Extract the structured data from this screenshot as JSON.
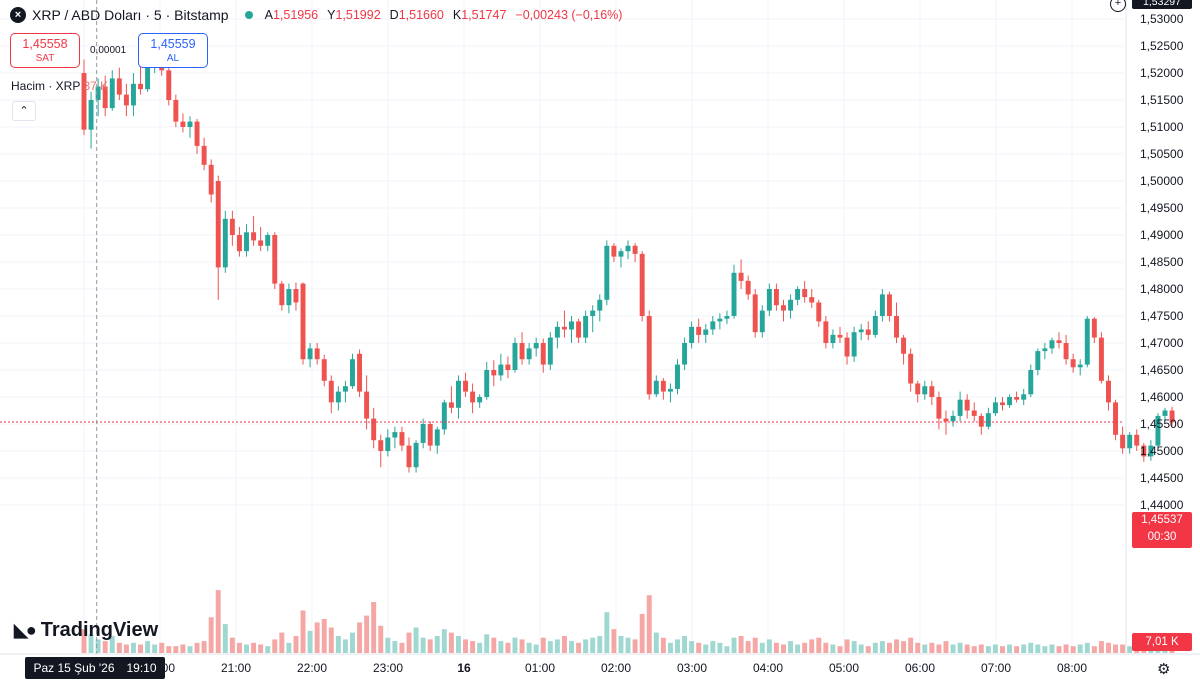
{
  "legend": {
    "symbol_icon": "x-close-icon",
    "symbol_text": "XRP / ABD Doları · 5 · Bitstamp",
    "ohlc": [
      {
        "key": "A",
        "value": "1,51956"
      },
      {
        "key": "Y",
        "value": "1,51992"
      },
      {
        "key": "D",
        "value": "1,51660"
      },
      {
        "key": "K",
        "value": "1,51747"
      }
    ],
    "change": "−0,00243 (−0,16%)"
  },
  "sell_box": {
    "price": "1,45558",
    "label": "SAT"
  },
  "buy_box": {
    "price": "1,45559",
    "label": "AL"
  },
  "spread": "0,00001",
  "volume_legend": {
    "label": "Hacim · XRP",
    "value": "37 K"
  },
  "collapse_icon": "chevron-up-icon",
  "brand": "TradingView",
  "crosshair_label": {
    "day": "Paz 15 Şub '26",
    "time": "19:10"
  },
  "current_price_tag": {
    "price": "1,45537",
    "countdown": "00:30"
  },
  "volume_tag": "7,01 K",
  "top_price_tag": "1,53297",
  "colors": {
    "up": "#26a69a",
    "down": "#ef5350",
    "vol_up": "#9fd8d1",
    "vol_down": "#f4a7a5",
    "price_line": "#f23645"
  },
  "chart_data": {
    "type": "candlestick",
    "timeframe": "5",
    "y_axis_ticks": [
      "1,53297",
      "1,53000",
      "1,52500",
      "1,52000",
      "1,51500",
      "1,51000",
      "1,50500",
      "1,50000",
      "1,49500",
      "1,49000",
      "1,48500",
      "1,48000",
      "1,47500",
      "1,47000",
      "1,46500",
      "1,46000",
      "1,45500",
      "1,45000",
      "1,44500",
      "1,44000"
    ],
    "y_range": [
      1.4375,
      1.533
    ],
    "x_axis_ticks": [
      ":00",
      "20:00",
      "21:00",
      "22:00",
      "23:00",
      "16",
      "01:00",
      "02:00",
      "03:00",
      "04:00",
      "05:00",
      "06:00",
      "07:00",
      "08:00"
    ],
    "x_tick_minutes": [
      1140,
      1200,
      1260,
      1320,
      1380,
      1440,
      1500,
      1560,
      1620,
      1680,
      1740,
      1800,
      1860,
      1920
    ],
    "x_range_minutes": [
      1140,
      1999
    ],
    "last_price": 1.45537,
    "crosshair_minutes": 1150,
    "candles": [
      [
        1.52,
        1.5225,
        1.5085,
        1.5095,
        0.14
      ],
      [
        1.5095,
        1.5165,
        1.506,
        1.515,
        0.11
      ],
      [
        1.515,
        1.519,
        1.512,
        1.5175,
        0.08
      ],
      [
        1.5175,
        1.5195,
        1.512,
        1.5135,
        0.07
      ],
      [
        1.5135,
        1.5205,
        1.513,
        1.519,
        0.1
      ],
      [
        1.519,
        1.521,
        1.515,
        1.516,
        0.06
      ],
      [
        1.516,
        1.518,
        1.512,
        1.514,
        0.05
      ],
      [
        1.514,
        1.52,
        1.512,
        1.518,
        0.06
      ],
      [
        1.518,
        1.5215,
        1.516,
        1.517,
        0.05
      ],
      [
        1.517,
        1.5225,
        1.5165,
        1.5215,
        0.07
      ],
      [
        1.5215,
        1.5235,
        1.52,
        1.5225,
        0.05
      ],
      [
        1.5225,
        1.5232,
        1.5195,
        1.5205,
        0.06
      ],
      [
        1.5205,
        1.521,
        1.514,
        1.515,
        0.04
      ],
      [
        1.515,
        1.516,
        1.51,
        1.511,
        0.04
      ],
      [
        1.511,
        1.5125,
        1.509,
        1.51,
        0.05
      ],
      [
        1.51,
        1.512,
        1.508,
        1.511,
        0.04
      ],
      [
        1.511,
        1.5115,
        1.505,
        1.5065,
        0.06
      ],
      [
        1.5065,
        1.508,
        1.502,
        1.503,
        0.07
      ],
      [
        1.503,
        1.504,
        1.496,
        1.4975,
        0.21
      ],
      [
        1.5,
        1.501,
        1.478,
        1.484,
        0.37
      ],
      [
        1.484,
        1.4945,
        1.483,
        1.493,
        0.17
      ],
      [
        1.493,
        1.4945,
        1.488,
        1.49,
        0.09
      ],
      [
        1.49,
        1.4915,
        1.486,
        1.487,
        0.06
      ],
      [
        1.487,
        1.492,
        1.486,
        1.4905,
        0.05
      ],
      [
        1.4905,
        1.4935,
        1.488,
        1.489,
        0.06
      ],
      [
        1.489,
        1.4915,
        1.487,
        1.488,
        0.05
      ],
      [
        1.488,
        1.4905,
        1.487,
        1.49,
        0.04
      ],
      [
        1.49,
        1.4905,
        1.48,
        1.481,
        0.08
      ],
      [
        1.481,
        1.4815,
        1.476,
        1.477,
        0.12
      ],
      [
        1.477,
        1.481,
        1.4755,
        1.48,
        0.06
      ],
      [
        1.48,
        1.4812,
        1.476,
        1.4775,
        0.1
      ],
      [
        1.481,
        1.4812,
        1.466,
        1.467,
        0.25
      ],
      [
        1.467,
        1.47,
        1.4655,
        1.469,
        0.13
      ],
      [
        1.469,
        1.47,
        1.466,
        1.467,
        0.18
      ],
      [
        1.467,
        1.4678,
        1.462,
        1.463,
        0.2
      ],
      [
        1.463,
        1.464,
        1.457,
        1.459,
        0.15
      ],
      [
        1.459,
        1.462,
        1.4575,
        1.461,
        0.1
      ],
      [
        1.461,
        1.463,
        1.459,
        1.462,
        0.08
      ],
      [
        1.462,
        1.468,
        1.4615,
        1.467,
        0.12
      ],
      [
        1.468,
        1.4688,
        1.46,
        1.461,
        0.18
      ],
      [
        1.461,
        1.464,
        1.454,
        1.456,
        0.22
      ],
      [
        1.456,
        1.458,
        1.4505,
        1.452,
        0.3
      ],
      [
        1.452,
        1.453,
        1.447,
        1.45,
        0.16
      ],
      [
        1.45,
        1.454,
        1.449,
        1.4525,
        0.09
      ],
      [
        1.4525,
        1.4545,
        1.4505,
        1.4535,
        0.07
      ],
      [
        1.4535,
        1.4545,
        1.45,
        1.451,
        0.06
      ],
      [
        1.451,
        1.4525,
        1.446,
        1.447,
        0.12
      ],
      [
        1.447,
        1.452,
        1.446,
        1.4515,
        0.15
      ],
      [
        1.4515,
        1.456,
        1.4505,
        1.455,
        0.09
      ],
      [
        1.455,
        1.4555,
        1.45,
        1.451,
        0.08
      ],
      [
        1.451,
        1.4545,
        1.4495,
        1.454,
        0.1
      ],
      [
        1.454,
        1.4595,
        1.453,
        1.459,
        0.14
      ],
      [
        1.459,
        1.462,
        1.457,
        1.458,
        0.12
      ],
      [
        1.458,
        1.464,
        1.456,
        1.463,
        0.1
      ],
      [
        1.463,
        1.4645,
        1.46,
        1.461,
        0.08
      ],
      [
        1.461,
        1.4625,
        1.457,
        1.459,
        0.07
      ],
      [
        1.459,
        1.4605,
        1.458,
        1.46,
        0.06
      ],
      [
        1.46,
        1.4665,
        1.4595,
        1.465,
        0.11
      ],
      [
        1.465,
        1.4668,
        1.462,
        1.464,
        0.09
      ],
      [
        1.464,
        1.468,
        1.463,
        1.466,
        0.07
      ],
      [
        1.466,
        1.4675,
        1.4635,
        1.465,
        0.06
      ],
      [
        1.465,
        1.471,
        1.4645,
        1.47,
        0.09
      ],
      [
        1.47,
        1.472,
        1.466,
        1.467,
        0.08
      ],
      [
        1.467,
        1.47,
        1.466,
        1.469,
        0.06
      ],
      [
        1.469,
        1.471,
        1.4675,
        1.47,
        0.05
      ],
      [
        1.47,
        1.4708,
        1.4645,
        1.466,
        0.09
      ],
      [
        1.466,
        1.472,
        1.465,
        1.471,
        0.07
      ],
      [
        1.471,
        1.474,
        1.469,
        1.473,
        0.08
      ],
      [
        1.473,
        1.476,
        1.471,
        1.4725,
        0.1
      ],
      [
        1.4725,
        1.475,
        1.47,
        1.474,
        0.07
      ],
      [
        1.474,
        1.4745,
        1.47,
        1.471,
        0.06
      ],
      [
        1.471,
        1.476,
        1.47,
        1.475,
        0.08
      ],
      [
        1.475,
        1.477,
        1.472,
        1.476,
        0.09
      ],
      [
        1.476,
        1.479,
        1.474,
        1.478,
        0.1
      ],
      [
        1.478,
        1.489,
        1.477,
        1.488,
        0.24
      ],
      [
        1.488,
        1.4885,
        1.485,
        1.486,
        0.14
      ],
      [
        1.486,
        1.4875,
        1.484,
        1.487,
        0.1
      ],
      [
        1.487,
        1.489,
        1.4855,
        1.488,
        0.09
      ],
      [
        1.488,
        1.4885,
        1.485,
        1.4865,
        0.08
      ],
      [
        1.4865,
        1.487,
        1.474,
        1.475,
        0.23
      ],
      [
        1.475,
        1.476,
        1.4595,
        1.4605,
        0.34
      ],
      [
        1.4605,
        1.464,
        1.46,
        1.463,
        0.12
      ],
      [
        1.463,
        1.4635,
        1.4595,
        1.461,
        0.09
      ],
      [
        1.461,
        1.4625,
        1.459,
        1.4615,
        0.06
      ],
      [
        1.4615,
        1.467,
        1.4605,
        1.466,
        0.08
      ],
      [
        1.466,
        1.471,
        1.465,
        1.47,
        0.1
      ],
      [
        1.47,
        1.474,
        1.469,
        1.473,
        0.07
      ],
      [
        1.473,
        1.4745,
        1.47,
        1.4715,
        0.06
      ],
      [
        1.4715,
        1.4735,
        1.47,
        1.4725,
        0.05
      ],
      [
        1.4725,
        1.475,
        1.4715,
        1.474,
        0.07
      ],
      [
        1.474,
        1.4755,
        1.4725,
        1.4745,
        0.06
      ],
      [
        1.4745,
        1.476,
        1.4735,
        1.475,
        0.04
      ],
      [
        1.475,
        1.4845,
        1.4745,
        1.483,
        0.09
      ],
      [
        1.483,
        1.4855,
        1.48,
        1.4815,
        0.1
      ],
      [
        1.4815,
        1.4825,
        1.478,
        1.479,
        0.07
      ],
      [
        1.479,
        1.48,
        1.471,
        1.472,
        0.09
      ],
      [
        1.472,
        1.477,
        1.471,
        1.476,
        0.06
      ],
      [
        1.476,
        1.481,
        1.475,
        1.48,
        0.08
      ],
      [
        1.48,
        1.481,
        1.476,
        1.477,
        0.06
      ],
      [
        1.477,
        1.478,
        1.474,
        1.476,
        0.05
      ],
      [
        1.476,
        1.479,
        1.4745,
        1.478,
        0.07
      ],
      [
        1.478,
        1.4805,
        1.477,
        1.48,
        0.05
      ],
      [
        1.48,
        1.4815,
        1.4775,
        1.4785,
        0.06
      ],
      [
        1.4785,
        1.48,
        1.4765,
        1.4775,
        0.08
      ],
      [
        1.4775,
        1.478,
        1.473,
        1.474,
        0.09
      ],
      [
        1.474,
        1.475,
        1.469,
        1.47,
        0.06
      ],
      [
        1.47,
        1.4725,
        1.469,
        1.4715,
        0.05
      ],
      [
        1.4715,
        1.473,
        1.47,
        1.471,
        0.04
      ],
      [
        1.471,
        1.472,
        1.466,
        1.4675,
        0.08
      ],
      [
        1.4675,
        1.473,
        1.4665,
        1.472,
        0.07
      ],
      [
        1.472,
        1.4735,
        1.4705,
        1.4725,
        0.05
      ],
      [
        1.4725,
        1.474,
        1.4705,
        1.4715,
        0.04
      ],
      [
        1.4715,
        1.476,
        1.471,
        1.475,
        0.06
      ],
      [
        1.475,
        1.48,
        1.474,
        1.479,
        0.07
      ],
      [
        1.479,
        1.4795,
        1.474,
        1.475,
        0.06
      ],
      [
        1.475,
        1.4775,
        1.47,
        1.471,
        0.08
      ],
      [
        1.471,
        1.4715,
        1.466,
        1.468,
        0.07
      ],
      [
        1.468,
        1.469,
        1.461,
        1.4625,
        0.09
      ],
      [
        1.4625,
        1.463,
        1.459,
        1.4605,
        0.06
      ],
      [
        1.4605,
        1.463,
        1.4595,
        1.462,
        0.05
      ],
      [
        1.462,
        1.463,
        1.4585,
        1.46,
        0.06
      ],
      [
        1.46,
        1.461,
        1.454,
        1.456,
        0.05
      ],
      [
        1.456,
        1.4575,
        1.453,
        1.4555,
        0.07
      ],
      [
        1.4555,
        1.4575,
        1.4545,
        1.4565,
        0.05
      ],
      [
        1.4565,
        1.461,
        1.4555,
        1.4595,
        0.06
      ],
      [
        1.4595,
        1.4605,
        1.456,
        1.4575,
        0.05
      ],
      [
        1.4575,
        1.459,
        1.4555,
        1.4565,
        0.04
      ],
      [
        1.4565,
        1.457,
        1.453,
        1.4545,
        0.05
      ],
      [
        1.4545,
        1.458,
        1.454,
        1.457,
        0.04
      ],
      [
        1.457,
        1.46,
        1.4565,
        1.459,
        0.05
      ],
      [
        1.459,
        1.46,
        1.4575,
        1.4585,
        0.04
      ],
      [
        1.4585,
        1.4605,
        1.458,
        1.46,
        0.05
      ],
      [
        1.46,
        1.461,
        1.459,
        1.4595,
        0.04
      ],
      [
        1.4595,
        1.4615,
        1.4585,
        1.4605,
        0.05
      ],
      [
        1.4605,
        1.466,
        1.46,
        1.465,
        0.06
      ],
      [
        1.465,
        1.469,
        1.464,
        1.4685,
        0.05
      ],
      [
        1.4685,
        1.47,
        1.467,
        1.469,
        0.04
      ],
      [
        1.469,
        1.471,
        1.468,
        1.4705,
        0.05
      ],
      [
        1.4705,
        1.472,
        1.469,
        1.47,
        0.04
      ],
      [
        1.47,
        1.4715,
        1.466,
        1.467,
        0.05
      ],
      [
        1.467,
        1.468,
        1.4645,
        1.4655,
        0.04
      ],
      [
        1.4655,
        1.467,
        1.464,
        1.466,
        0.05
      ],
      [
        1.466,
        1.475,
        1.4655,
        1.4745,
        0.06
      ],
      [
        1.4745,
        1.4748,
        1.47,
        1.471,
        0.04
      ],
      [
        1.471,
        1.472,
        1.4625,
        1.463,
        0.07
      ],
      [
        1.463,
        1.464,
        1.4575,
        1.459,
        0.06
      ],
      [
        1.459,
        1.4595,
        1.452,
        1.453,
        0.05
      ],
      [
        1.453,
        1.4545,
        1.4495,
        1.4505,
        0.05
      ],
      [
        1.4505,
        1.4535,
        1.4495,
        1.453,
        0.04
      ],
      [
        1.453,
        1.454,
        1.45,
        1.451,
        0.05
      ],
      [
        1.451,
        1.4515,
        1.448,
        1.449,
        0.08
      ],
      [
        1.449,
        1.452,
        1.4482,
        1.451,
        0.07
      ],
      [
        1.451,
        1.457,
        1.4505,
        1.4565,
        0.04
      ],
      [
        1.4565,
        1.458,
        1.4555,
        1.4575,
        0.03
      ],
      [
        1.4575,
        1.4582,
        1.4545,
        1.4553,
        0.02
      ]
    ]
  }
}
